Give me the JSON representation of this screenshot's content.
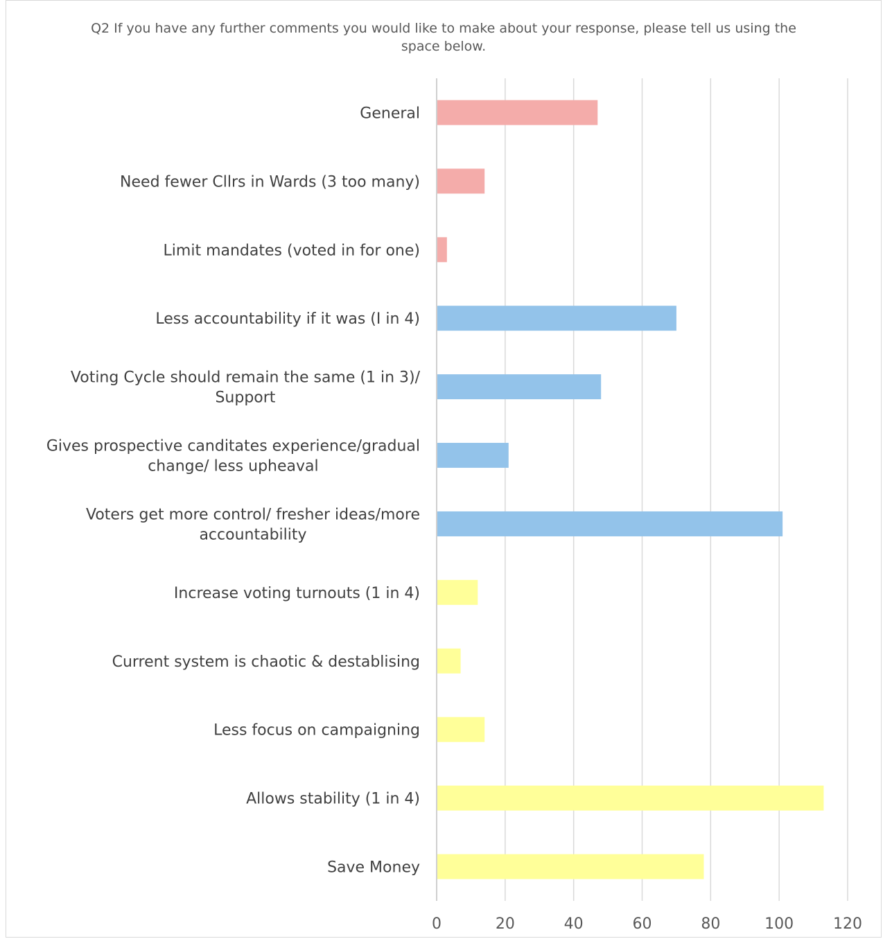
{
  "chart_data": {
    "type": "bar",
    "orientation": "horizontal",
    "title": "Q2 If you have any further comments  you would like to make about your response, please tell us using the space below.",
    "xlim": [
      0,
      120
    ],
    "ticks": [
      0,
      20,
      40,
      60,
      80,
      100,
      120
    ],
    "grid": true,
    "categories": [
      "General",
      "Need fewer Cllrs in Wards (3 too many)",
      "Limit mandates (voted in for one)",
      "Less accountability if it was (I in 4)",
      "Voting Cycle should remain the same (1 in 3)/ Support",
      "Gives prospective canditates experience/gradual change/ less upheaval",
      "Voters get more control/ fresher ideas/more accountability",
      "Increase voting turnouts (1 in 4)",
      "Current system is chaotic & destablising",
      "Less focus on campaigning",
      "Allows stability (1 in 4)",
      "Save Money"
    ],
    "category_lines": [
      [
        "General"
      ],
      [
        "Need fewer Cllrs in Wards (3 too many)"
      ],
      [
        "Limit mandates (voted in for one)"
      ],
      [
        "Less accountability if it was (I in 4)"
      ],
      [
        "Voting Cycle should remain the same (1 in 3)/",
        "Support"
      ],
      [
        "Gives prospective canditates experience/gradual",
        "change/ less upheaval"
      ],
      [
        "Voters get more control/ fresher ideas/more",
        "accountability"
      ],
      [
        "Increase voting turnouts (1 in 4)"
      ],
      [
        "Current system is chaotic & destablising"
      ],
      [
        "Less focus on campaigning"
      ],
      [
        "Allows stability (1 in 4)"
      ],
      [
        "Save Money"
      ]
    ],
    "values": [
      47,
      14,
      3,
      70,
      48,
      21,
      101,
      12,
      7,
      14,
      113,
      78
    ],
    "bar_colors": [
      "#f4acaa",
      "#f4acaa",
      "#f4acaa",
      "#93c3ea",
      "#93c3ea",
      "#93c3ea",
      "#93c3ea",
      "#ffff99",
      "#ffff99",
      "#ffff99",
      "#ffff99",
      "#ffff99"
    ],
    "colors": {
      "grid": "#d9d9d9",
      "axis": "#bfbfbf"
    }
  }
}
